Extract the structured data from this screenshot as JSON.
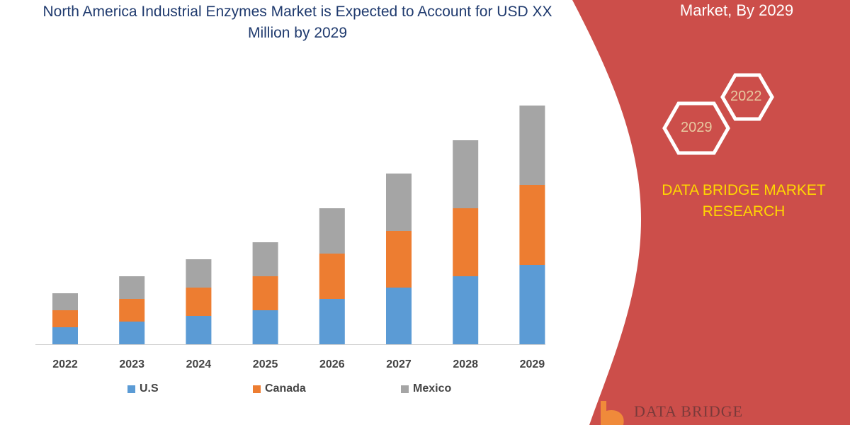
{
  "header": {
    "title": "North America Industrial Enzymes Market is Expected to Account for USD XX Million by 2029",
    "right_title": "Market, By 2029"
  },
  "badges": {
    "hex_1": "2022",
    "hex_2": "2029"
  },
  "brand": {
    "name": "DATA BRIDGE MARKET RESEARCH",
    "logo_text": "DATA BRIDGE"
  },
  "colors": {
    "accent_red": "#cc4e4a",
    "brand_yellow": "#ffd700",
    "title_blue": "#1f3a6e"
  },
  "chart_data": {
    "type": "bar",
    "stacked": true,
    "title": "North America Industrial Enzymes Market is Expected to Account for USD XX Million by 2029",
    "categories": [
      "2022",
      "2023",
      "2024",
      "2025",
      "2026",
      "2027",
      "2028",
      "2029"
    ],
    "series": [
      {
        "name": "U.S",
        "color": "#5b9bd5",
        "values": [
          24,
          32,
          40,
          48,
          64,
          80,
          96,
          112
        ]
      },
      {
        "name": "Canada",
        "color": "#ed7d31",
        "values": [
          24,
          32,
          40,
          48,
          64,
          80,
          96,
          113
        ]
      },
      {
        "name": "Mexico",
        "color": "#a5a5a5",
        "values": [
          24,
          32,
          40,
          48,
          64,
          81,
          96,
          112
        ]
      }
    ],
    "ylim": [
      0,
      340
    ],
    "grid": false,
    "legend_position": "bottom",
    "y_axis_shown": false
  }
}
